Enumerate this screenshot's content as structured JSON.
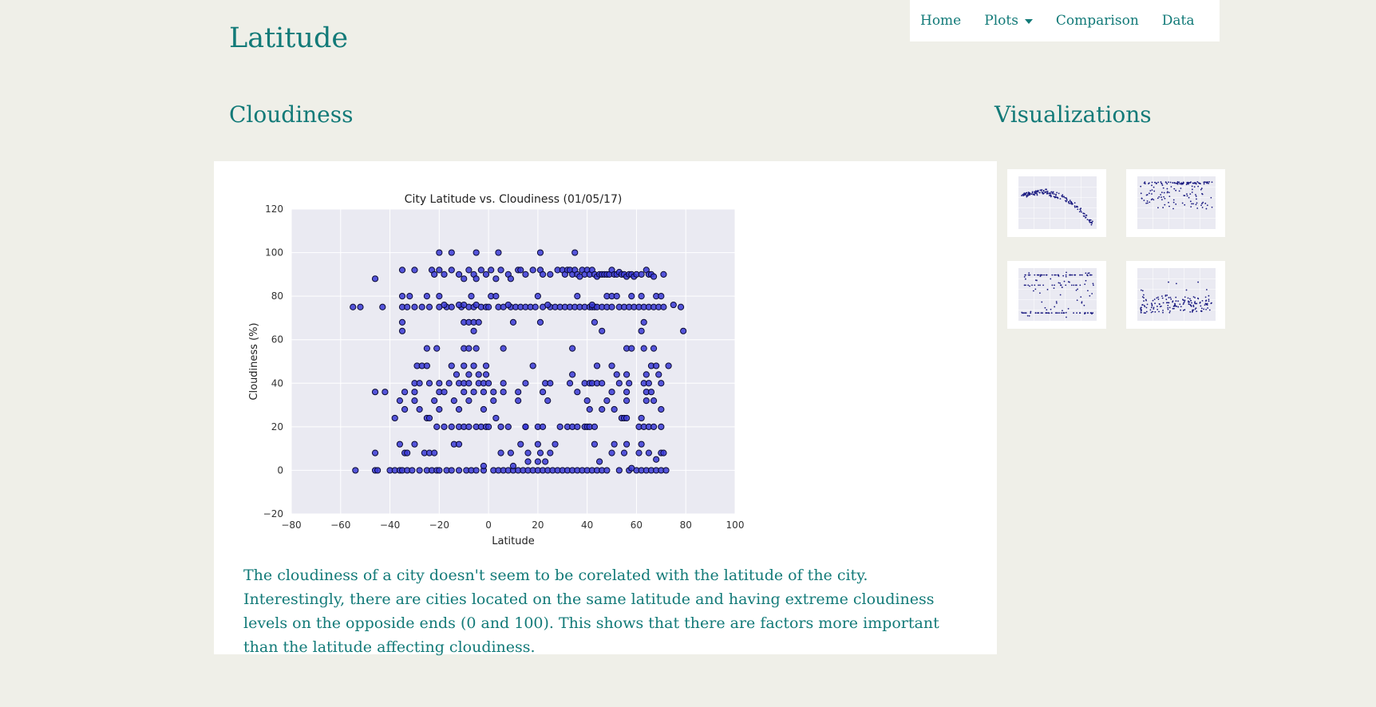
{
  "site_title": "Latitude",
  "nav": {
    "home": "Home",
    "plots": "Plots",
    "comparison": "Comparison",
    "data": "Data"
  },
  "main": {
    "heading": "Cloudiness",
    "description": "The cloudiness of a city doesn't seem to be corelated with the latitude of the city. Interestingly, there are cities located on the same latitude and having extreme cloudiness levels on the opposide ends (0 and 100). This shows that there are factors more important than the latitude affecting cloudiness."
  },
  "sidebar": {
    "heading": "Visualizations",
    "thumbnails": [
      {
        "id": "max-temp"
      },
      {
        "id": "humidity"
      },
      {
        "id": "cloudiness"
      },
      {
        "id": "wind-speed"
      }
    ]
  },
  "colors": {
    "accent": "#127a78",
    "page_bg": "#efefe8",
    "plot_bg": "#eaeaf2",
    "marker": "#3a3ad6"
  },
  "chart_data": {
    "type": "scatter",
    "title": "City Latitude vs. Cloudiness (01/05/17)",
    "xlabel": "Latitude",
    "ylabel": "Cloudiness (%)",
    "xlim": [
      -80,
      100
    ],
    "ylim": [
      -20,
      120
    ],
    "xticks": [
      -80,
      -60,
      -40,
      -20,
      0,
      20,
      40,
      60,
      80,
      100
    ],
    "yticks": [
      -20,
      0,
      20,
      40,
      60,
      80,
      100,
      120
    ],
    "grid": true,
    "points": [
      [
        -54,
        0
      ],
      [
        -46,
        0
      ],
      [
        -45,
        0
      ],
      [
        -40,
        0
      ],
      [
        -38,
        0
      ],
      [
        -36,
        0
      ],
      [
        -35,
        0
      ],
      [
        -33,
        0
      ],
      [
        -31,
        0
      ],
      [
        -28,
        0
      ],
      [
        -25,
        0
      ],
      [
        -23,
        0
      ],
      [
        -21,
        0
      ],
      [
        -20,
        0
      ],
      [
        -17,
        0
      ],
      [
        -15,
        0
      ],
      [
        -12,
        0
      ],
      [
        -9,
        0
      ],
      [
        -7,
        0
      ],
      [
        -5,
        0
      ],
      [
        -2,
        0
      ],
      [
        2,
        0
      ],
      [
        4,
        0
      ],
      [
        6,
        0
      ],
      [
        8,
        0
      ],
      [
        10,
        0
      ],
      [
        12,
        0
      ],
      [
        14,
        0
      ],
      [
        16,
        0
      ],
      [
        18,
        0
      ],
      [
        20,
        0
      ],
      [
        22,
        0
      ],
      [
        24,
        0
      ],
      [
        26,
        0
      ],
      [
        28,
        0
      ],
      [
        30,
        0
      ],
      [
        32,
        0
      ],
      [
        34,
        0
      ],
      [
        36,
        0
      ],
      [
        38,
        0
      ],
      [
        40,
        0
      ],
      [
        42,
        0
      ],
      [
        44,
        0
      ],
      [
        46,
        0
      ],
      [
        48,
        0
      ],
      [
        53,
        0
      ],
      [
        57,
        0
      ],
      [
        60,
        0
      ],
      [
        62,
        0
      ],
      [
        64,
        0
      ],
      [
        66,
        0
      ],
      [
        68,
        0
      ],
      [
        70,
        0
      ],
      [
        72,
        0
      ],
      [
        -46,
        8
      ],
      [
        -34,
        8
      ],
      [
        -33,
        8
      ],
      [
        -26,
        8
      ],
      [
        -24,
        8
      ],
      [
        -22,
        8
      ],
      [
        5,
        8
      ],
      [
        9,
        8
      ],
      [
        16,
        8
      ],
      [
        21,
        8
      ],
      [
        25,
        8
      ],
      [
        50,
        8
      ],
      [
        55,
        8
      ],
      [
        61,
        8
      ],
      [
        65,
        8
      ],
      [
        70,
        8
      ],
      [
        71,
        8
      ],
      [
        -36,
        12
      ],
      [
        -30,
        12
      ],
      [
        -14,
        12
      ],
      [
        -12,
        12
      ],
      [
        13,
        12
      ],
      [
        20,
        12
      ],
      [
        27,
        12
      ],
      [
        43,
        12
      ],
      [
        51,
        12
      ],
      [
        56,
        12
      ],
      [
        62,
        12
      ],
      [
        -2,
        2
      ],
      [
        10,
        2
      ],
      [
        16,
        4
      ],
      [
        20,
        4
      ],
      [
        23,
        4
      ],
      [
        45,
        4
      ],
      [
        58,
        1
      ],
      [
        68,
        5
      ],
      [
        -38,
        24
      ],
      [
        -25,
        24
      ],
      [
        -24,
        24
      ],
      [
        3,
        24
      ],
      [
        15,
        20
      ],
      [
        -21,
        20
      ],
      [
        -18,
        20
      ],
      [
        -15,
        20
      ],
      [
        -12,
        20
      ],
      [
        -10,
        20
      ],
      [
        -8,
        20
      ],
      [
        -5,
        20
      ],
      [
        -3,
        20
      ],
      [
        -1,
        20
      ],
      [
        0,
        20
      ],
      [
        5,
        20
      ],
      [
        8,
        20
      ],
      [
        15,
        20
      ],
      [
        20,
        20
      ],
      [
        22,
        20
      ],
      [
        29,
        20
      ],
      [
        32,
        20
      ],
      [
        34,
        20
      ],
      [
        36,
        20
      ],
      [
        39,
        20
      ],
      [
        40,
        20
      ],
      [
        41,
        20
      ],
      [
        43,
        20
      ],
      [
        54,
        24
      ],
      [
        55,
        24
      ],
      [
        56,
        24
      ],
      [
        62,
        24
      ],
      [
        61,
        20
      ],
      [
        63,
        20
      ],
      [
        65,
        20
      ],
      [
        67,
        20
      ],
      [
        70,
        20
      ],
      [
        -34,
        28
      ],
      [
        -28,
        28
      ],
      [
        -20,
        28
      ],
      [
        -12,
        28
      ],
      [
        -2,
        28
      ],
      [
        12,
        32
      ],
      [
        -36,
        32
      ],
      [
        -30,
        32
      ],
      [
        -22,
        32
      ],
      [
        -14,
        32
      ],
      [
        -8,
        32
      ],
      [
        2,
        32
      ],
      [
        24,
        32
      ],
      [
        40,
        32
      ],
      [
        48,
        32
      ],
      [
        56,
        32
      ],
      [
        64,
        32
      ],
      [
        67,
        32
      ],
      [
        70,
        28
      ],
      [
        51,
        28
      ],
      [
        46,
        28
      ],
      [
        41,
        28
      ],
      [
        -46,
        36
      ],
      [
        -42,
        36
      ],
      [
        -34,
        36
      ],
      [
        -30,
        36
      ],
      [
        -20,
        36
      ],
      [
        -18,
        36
      ],
      [
        -10,
        36
      ],
      [
        -6,
        36
      ],
      [
        -2,
        36
      ],
      [
        2,
        36
      ],
      [
        6,
        36
      ],
      [
        12,
        36
      ],
      [
        22,
        36
      ],
      [
        36,
        36
      ],
      [
        50,
        36
      ],
      [
        56,
        36
      ],
      [
        64,
        36
      ],
      [
        66,
        36
      ],
      [
        -30,
        40
      ],
      [
        -28,
        40
      ],
      [
        -24,
        40
      ],
      [
        -20,
        40
      ],
      [
        -16,
        40
      ],
      [
        -12,
        40
      ],
      [
        -10,
        40
      ],
      [
        -8,
        40
      ],
      [
        -4,
        40
      ],
      [
        -2,
        40
      ],
      [
        0,
        40
      ],
      [
        6,
        40
      ],
      [
        15,
        40
      ],
      [
        23,
        40
      ],
      [
        25,
        40
      ],
      [
        33,
        40
      ],
      [
        39,
        40
      ],
      [
        41,
        40
      ],
      [
        42,
        40
      ],
      [
        44,
        40
      ],
      [
        46,
        40
      ],
      [
        53,
        40
      ],
      [
        57,
        40
      ],
      [
        63,
        40
      ],
      [
        65,
        40
      ],
      [
        70,
        40
      ],
      [
        -29,
        48
      ],
      [
        -27,
        48
      ],
      [
        -25,
        48
      ],
      [
        -15,
        48
      ],
      [
        -10,
        48
      ],
      [
        -6,
        48
      ],
      [
        -1,
        48
      ],
      [
        18,
        48
      ],
      [
        34,
        44
      ],
      [
        44,
        48
      ],
      [
        50,
        48
      ],
      [
        52,
        44
      ],
      [
        56,
        44
      ],
      [
        64,
        44
      ],
      [
        66,
        48
      ],
      [
        68,
        48
      ],
      [
        69,
        44
      ],
      [
        73,
        48
      ],
      [
        -13,
        44
      ],
      [
        -8,
        44
      ],
      [
        -4,
        44
      ],
      [
        -1,
        44
      ],
      [
        -25,
        56
      ],
      [
        -21,
        56
      ],
      [
        -10,
        56
      ],
      [
        -8,
        56
      ],
      [
        -5,
        56
      ],
      [
        6,
        56
      ],
      [
        34,
        56
      ],
      [
        56,
        56
      ],
      [
        58,
        56
      ],
      [
        63,
        56
      ],
      [
        67,
        56
      ],
      [
        -35,
        64
      ],
      [
        -6,
        64
      ],
      [
        46,
        64
      ],
      [
        62,
        64
      ],
      [
        79,
        64
      ],
      [
        -35,
        68
      ],
      [
        -10,
        68
      ],
      [
        -8,
        68
      ],
      [
        -6,
        68
      ],
      [
        -4,
        68
      ],
      [
        10,
        68
      ],
      [
        21,
        68
      ],
      [
        43,
        68
      ],
      [
        63,
        68
      ],
      [
        -55,
        75
      ],
      [
        -52,
        75
      ],
      [
        -43,
        75
      ],
      [
        -35,
        75
      ],
      [
        -33,
        75
      ],
      [
        -30,
        75
      ],
      [
        -27,
        75
      ],
      [
        -24,
        75
      ],
      [
        -20,
        75
      ],
      [
        -17,
        75
      ],
      [
        -15,
        75
      ],
      [
        -11,
        75
      ],
      [
        -8,
        75
      ],
      [
        -6,
        75
      ],
      [
        -3,
        75
      ],
      [
        -1,
        75
      ],
      [
        0,
        75
      ],
      [
        4,
        75
      ],
      [
        6,
        75
      ],
      [
        9,
        75
      ],
      [
        11,
        75
      ],
      [
        13,
        75
      ],
      [
        15,
        75
      ],
      [
        17,
        75
      ],
      [
        19,
        75
      ],
      [
        22,
        75
      ],
      [
        25,
        75
      ],
      [
        27,
        75
      ],
      [
        29,
        75
      ],
      [
        31,
        75
      ],
      [
        33,
        75
      ],
      [
        35,
        75
      ],
      [
        37,
        75
      ],
      [
        39,
        75
      ],
      [
        41,
        75
      ],
      [
        42,
        75
      ],
      [
        43,
        75
      ],
      [
        44,
        75
      ],
      [
        46,
        75
      ],
      [
        48,
        75
      ],
      [
        50,
        75
      ],
      [
        53,
        75
      ],
      [
        55,
        75
      ],
      [
        57,
        75
      ],
      [
        59,
        75
      ],
      [
        61,
        75
      ],
      [
        63,
        75
      ],
      [
        65,
        75
      ],
      [
        67,
        75
      ],
      [
        69,
        75
      ],
      [
        71,
        75
      ],
      [
        75,
        76
      ],
      [
        78,
        75
      ],
      [
        -46,
        88
      ],
      [
        -35,
        92
      ],
      [
        -35,
        80
      ],
      [
        -32,
        80
      ],
      [
        -25,
        80
      ],
      [
        -20,
        80
      ],
      [
        -18,
        76
      ],
      [
        -12,
        76
      ],
      [
        -10,
        76
      ],
      [
        -5,
        76
      ],
      [
        1,
        80
      ],
      [
        3,
        80
      ],
      [
        -7,
        80
      ],
      [
        8,
        76
      ],
      [
        20,
        80
      ],
      [
        24,
        76
      ],
      [
        36,
        80
      ],
      [
        42,
        76
      ],
      [
        48,
        80
      ],
      [
        50,
        80
      ],
      [
        52,
        80
      ],
      [
        58,
        80
      ],
      [
        62,
        80
      ],
      [
        68,
        80
      ],
      [
        70,
        80
      ],
      [
        -30,
        92
      ],
      [
        -23,
        92
      ],
      [
        -22,
        90
      ],
      [
        -20,
        92
      ],
      [
        -18,
        90
      ],
      [
        -15,
        92
      ],
      [
        -12,
        90
      ],
      [
        -10,
        88
      ],
      [
        -8,
        92
      ],
      [
        -6,
        90
      ],
      [
        -5,
        88
      ],
      [
        -3,
        92
      ],
      [
        -1,
        90
      ],
      [
        1,
        92
      ],
      [
        3,
        88
      ],
      [
        5,
        92
      ],
      [
        8,
        90
      ],
      [
        9,
        88
      ],
      [
        12,
        92
      ],
      [
        13,
        92
      ],
      [
        15,
        90
      ],
      [
        18,
        92
      ],
      [
        21,
        92
      ],
      [
        22,
        90
      ],
      [
        25,
        90
      ],
      [
        28,
        92
      ],
      [
        30,
        92
      ],
      [
        31,
        90
      ],
      [
        32,
        92
      ],
      [
        33,
        92
      ],
      [
        34,
        90
      ],
      [
        35,
        92
      ],
      [
        36,
        90
      ],
      [
        37,
        89
      ],
      [
        38,
        92
      ],
      [
        39,
        90
      ],
      [
        40,
        92
      ],
      [
        41,
        90
      ],
      [
        42,
        92
      ],
      [
        43,
        90
      ],
      [
        44,
        89
      ],
      [
        45,
        90
      ],
      [
        46,
        90
      ],
      [
        47,
        90
      ],
      [
        48,
        90
      ],
      [
        49,
        90
      ],
      [
        50,
        92
      ],
      [
        51,
        90
      ],
      [
        52,
        90
      ],
      [
        53,
        91
      ],
      [
        54,
        90
      ],
      [
        55,
        90
      ],
      [
        56,
        89
      ],
      [
        57,
        90
      ],
      [
        58,
        90
      ],
      [
        59,
        89
      ],
      [
        60,
        90
      ],
      [
        62,
        90
      ],
      [
        64,
        92
      ],
      [
        65,
        90
      ],
      [
        66,
        90
      ],
      [
        67,
        89
      ],
      [
        71,
        90
      ],
      [
        -20,
        100
      ],
      [
        -15,
        100
      ],
      [
        -5,
        100
      ],
      [
        4,
        100
      ],
      [
        21,
        100
      ],
      [
        35,
        100
      ]
    ]
  }
}
